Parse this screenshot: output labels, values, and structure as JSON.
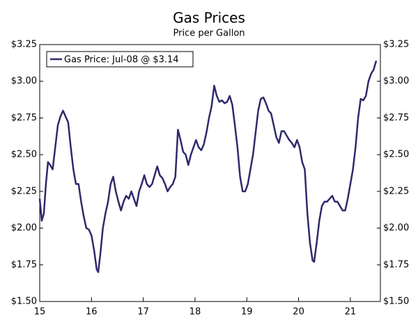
{
  "chart_data": {
    "type": "line",
    "title": "Gas Prices",
    "subtitle": "Price per Gallon",
    "x": [
      15.0,
      15.04,
      15.08,
      15.12,
      15.16,
      15.2,
      15.25,
      15.3,
      15.35,
      15.4,
      15.45,
      15.5,
      15.55,
      15.6,
      15.65,
      15.7,
      15.75,
      15.8,
      15.85,
      15.9,
      15.95,
      16.0,
      16.05,
      16.1,
      16.13,
      16.17,
      16.22,
      16.27,
      16.32,
      16.37,
      16.42,
      16.47,
      16.52,
      16.57,
      16.62,
      16.67,
      16.72,
      16.77,
      16.82,
      16.87,
      16.92,
      16.97,
      17.02,
      17.07,
      17.12,
      17.17,
      17.22,
      17.27,
      17.32,
      17.37,
      17.42,
      17.47,
      17.52,
      17.57,
      17.62,
      17.67,
      17.72,
      17.77,
      17.82,
      17.87,
      17.92,
      17.97,
      18.02,
      18.07,
      18.12,
      18.17,
      18.22,
      18.27,
      18.32,
      18.37,
      18.42,
      18.47,
      18.52,
      18.57,
      18.62,
      18.67,
      18.72,
      18.77,
      18.82,
      18.87,
      18.92,
      18.97,
      19.02,
      19.07,
      19.12,
      19.17,
      19.22,
      19.27,
      19.32,
      19.37,
      19.42,
      19.47,
      19.52,
      19.57,
      19.62,
      19.67,
      19.72,
      19.77,
      19.82,
      19.87,
      19.92,
      19.97,
      20.02,
      20.07,
      20.12,
      20.17,
      20.22,
      20.27,
      20.3,
      20.35,
      20.4,
      20.45,
      20.5,
      20.55,
      20.6,
      20.65,
      20.7,
      20.75,
      20.8,
      20.85,
      20.9,
      20.95,
      21.0,
      21.05,
      21.1,
      21.15,
      21.2,
      21.25,
      21.3,
      21.35,
      21.4,
      21.45,
      21.5
    ],
    "series": [
      {
        "name": "Gas Price: Jul-08 @ $3.14",
        "color": "#2e2a6b",
        "values": [
          2.2,
          2.05,
          2.1,
          2.3,
          2.45,
          2.43,
          2.4,
          2.55,
          2.7,
          2.76,
          2.8,
          2.76,
          2.72,
          2.55,
          2.4,
          2.3,
          2.3,
          2.18,
          2.08,
          2.0,
          1.99,
          1.95,
          1.85,
          1.72,
          1.7,
          1.82,
          2.0,
          2.1,
          2.18,
          2.3,
          2.35,
          2.25,
          2.18,
          2.12,
          2.18,
          2.22,
          2.2,
          2.25,
          2.2,
          2.15,
          2.25,
          2.3,
          2.36,
          2.3,
          2.28,
          2.3,
          2.36,
          2.42,
          2.36,
          2.34,
          2.3,
          2.25,
          2.28,
          2.3,
          2.35,
          2.67,
          2.6,
          2.52,
          2.5,
          2.43,
          2.5,
          2.55,
          2.6,
          2.55,
          2.53,
          2.57,
          2.65,
          2.75,
          2.83,
          2.97,
          2.9,
          2.86,
          2.87,
          2.85,
          2.86,
          2.9,
          2.84,
          2.7,
          2.55,
          2.35,
          2.25,
          2.25,
          2.3,
          2.4,
          2.5,
          2.65,
          2.8,
          2.88,
          2.89,
          2.85,
          2.8,
          2.78,
          2.7,
          2.62,
          2.58,
          2.66,
          2.66,
          2.63,
          2.6,
          2.58,
          2.55,
          2.6,
          2.55,
          2.45,
          2.4,
          2.1,
          1.9,
          1.78,
          1.77,
          1.9,
          2.05,
          2.15,
          2.18,
          2.18,
          2.2,
          2.22,
          2.18,
          2.18,
          2.15,
          2.12,
          2.12,
          2.2,
          2.3,
          2.4,
          2.55,
          2.75,
          2.88,
          2.87,
          2.9,
          3.0,
          3.05,
          3.08,
          3.14
        ]
      }
    ],
    "xlim": [
      15,
      21.58
    ],
    "xticks": [
      15,
      16,
      17,
      18,
      19,
      20,
      21
    ],
    "ylim": [
      1.5,
      3.25
    ],
    "yticks": [
      {
        "value": 1.5,
        "label": "$1.50"
      },
      {
        "value": 1.75,
        "label": "$1.75"
      },
      {
        "value": 2.0,
        "label": "$2.00"
      },
      {
        "value": 2.25,
        "label": "$2.25"
      },
      {
        "value": 2.5,
        "label": "$2.50"
      },
      {
        "value": 2.75,
        "label": "$2.75"
      },
      {
        "value": 3.0,
        "label": "$3.00"
      },
      {
        "value": 3.25,
        "label": "$3.25"
      }
    ],
    "legend": "upper left"
  }
}
